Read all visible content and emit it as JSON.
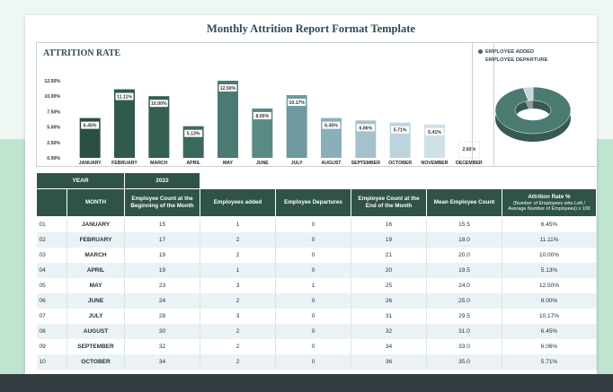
{
  "title": "Monthly Attrition Report Format Template",
  "chart_data": {
    "type": "bar",
    "title": "ATTRITION RATE",
    "categories": [
      "JANUARY",
      "FEBRUARY",
      "MARCH",
      "APRIL",
      "MAY",
      "JUNE",
      "JULY",
      "AUGUST",
      "SEPTEMBER",
      "OCTOBER",
      "NOVEMBER",
      "DECEMBER"
    ],
    "values": [
      6.45,
      11.11,
      10.0,
      5.13,
      12.5,
      8.0,
      10.17,
      6.45,
      6.06,
      5.71,
      5.41,
      2.6
    ],
    "data_labels": [
      "6.45%",
      "11.11%",
      "10.00%",
      "5.13%",
      "12.50%",
      "8.00%",
      "10.17%",
      "6.45%",
      "6.06%",
      "5.71%",
      "5.41%",
      "2.60%"
    ],
    "yticks": [
      "0.00%",
      "2.50%",
      "5.00%",
      "7.50%",
      "10.00%",
      "12.50%"
    ],
    "ylim": [
      0,
      12.5
    ],
    "colors": [
      "#2c4f45",
      "#2f5a4c",
      "#345f52",
      "#3a6a5e",
      "#4a7a72",
      "#5b8a85",
      "#6e9aa0",
      "#8aafb8",
      "#a5c2cc",
      "#bcd4dd",
      "#cfe1e8",
      "#ffffff"
    ]
  },
  "pie": {
    "legend": [
      "EMPLOYEE ADDED",
      "EMPLOYEE DEPARTURE"
    ],
    "values": [
      23,
      1
    ],
    "colors": [
      "#4b7b70",
      "#c7d6dc"
    ]
  },
  "year_row": {
    "label": "YEAR",
    "value": "2022"
  },
  "headers": {
    "num": "",
    "month": "MONTH",
    "begin": "Employee Count at the Beginning of the Month",
    "added": "Employees added",
    "departures": "Employee Departures",
    "end": "Employee Count at the End of the Month",
    "mean": "Mean Employee Count",
    "rate": "Attrition Rate %",
    "rate_sub": "(Number of Employees who Left / Average Number of Employees) x 100"
  },
  "rows": [
    {
      "num": "01",
      "month": "JANUARY",
      "begin": "15",
      "added": "1",
      "dep": "0",
      "end": "16",
      "mean": "15.5",
      "rate": "6.45%"
    },
    {
      "num": "02",
      "month": "FEBRUARY",
      "begin": "17",
      "added": "2",
      "dep": "0",
      "end": "19",
      "mean": "18.0",
      "rate": "11.11%"
    },
    {
      "num": "03",
      "month": "MARCH",
      "begin": "19",
      "added": "2",
      "dep": "0",
      "end": "21",
      "mean": "20.0",
      "rate": "10.00%"
    },
    {
      "num": "04",
      "month": "APRIL",
      "begin": "19",
      "added": "1",
      "dep": "0",
      "end": "20",
      "mean": "19.5",
      "rate": "5.13%"
    },
    {
      "num": "05",
      "month": "MAY",
      "begin": "23",
      "added": "3",
      "dep": "1",
      "end": "25",
      "mean": "24.0",
      "rate": "12.50%"
    },
    {
      "num": "06",
      "month": "JUNE",
      "begin": "24",
      "added": "2",
      "dep": "0",
      "end": "26",
      "mean": "25.0",
      "rate": "8.00%"
    },
    {
      "num": "07",
      "month": "JULY",
      "begin": "28",
      "added": "3",
      "dep": "0",
      "end": "31",
      "mean": "29.5",
      "rate": "10.17%"
    },
    {
      "num": "08",
      "month": "AUGUST",
      "begin": "30",
      "added": "2",
      "dep": "0",
      "end": "32",
      "mean": "31.0",
      "rate": "6.45%"
    },
    {
      "num": "09",
      "month": "SEPTEMBER",
      "begin": "32",
      "added": "2",
      "dep": "0",
      "end": "34",
      "mean": "33.0",
      "rate": "6.06%"
    },
    {
      "num": "10",
      "month": "OCTOBER",
      "begin": "34",
      "added": "2",
      "dep": "0",
      "end": "36",
      "mean": "35.0",
      "rate": "5.71%"
    }
  ]
}
